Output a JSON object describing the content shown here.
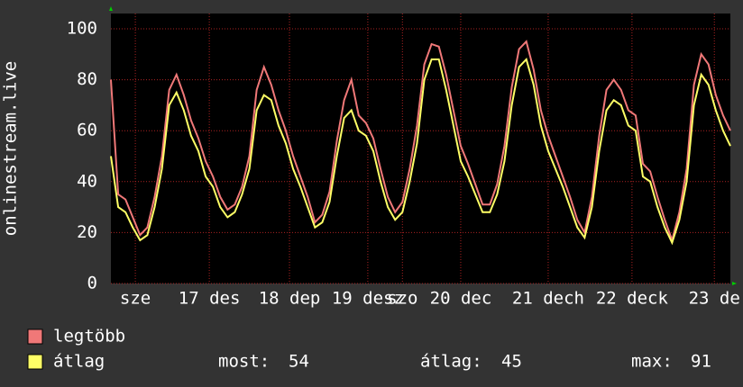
{
  "chart_data": {
    "type": "line",
    "y_label": "onlinestream.live",
    "x": [
      0,
      2,
      4,
      6,
      8,
      10,
      12,
      14,
      16,
      18,
      20,
      22,
      24,
      26,
      28,
      30,
      32,
      34,
      36,
      38,
      40,
      42,
      44,
      46,
      48,
      50,
      52,
      54,
      56,
      58,
      60,
      62,
      64,
      66,
      68,
      70,
      72,
      74,
      76,
      78,
      80,
      82,
      84,
      86,
      88,
      90,
      92,
      94,
      96,
      98,
      100,
      102,
      104,
      106,
      108,
      110,
      112,
      114,
      116,
      118,
      120,
      122,
      124,
      126,
      128,
      130,
      132,
      134,
      136,
      138,
      140,
      142,
      144,
      146,
      148,
      150,
      152,
      154,
      156,
      158,
      160,
      162,
      164,
      166,
      168,
      170
    ],
    "series": [
      {
        "name": "legtöbb",
        "color": "#f07878",
        "values": [
          80,
          35,
          33,
          26,
          19,
          22,
          34,
          50,
          76,
          82,
          74,
          64,
          57,
          48,
          42,
          34,
          29,
          31,
          38,
          50,
          76,
          85,
          78,
          68,
          60,
          50,
          42,
          34,
          24,
          27,
          36,
          56,
          72,
          80,
          66,
          63,
          57,
          45,
          34,
          28,
          32,
          45,
          62,
          86,
          94,
          93,
          82,
          68,
          54,
          47,
          39,
          31,
          31,
          39,
          54,
          77,
          92,
          95,
          84,
          68,
          58,
          50,
          42,
          34,
          25,
          20,
          34,
          58,
          76,
          80,
          76,
          68,
          66,
          47,
          44,
          34,
          25,
          17,
          28,
          45,
          78,
          90,
          86,
          74,
          66,
          60
        ]
      },
      {
        "name": "átlag",
        "color": "#ffff66",
        "values": [
          50,
          30,
          28,
          22,
          17,
          19,
          30,
          45,
          70,
          75,
          68,
          58,
          52,
          42,
          38,
          30,
          26,
          28,
          35,
          45,
          68,
          74,
          72,
          62,
          55,
          45,
          38,
          30,
          22,
          24,
          32,
          50,
          65,
          68,
          60,
          58,
          52,
          40,
          30,
          25,
          28,
          40,
          55,
          80,
          88,
          88,
          76,
          62,
          48,
          42,
          35,
          28,
          28,
          35,
          48,
          70,
          85,
          88,
          78,
          62,
          52,
          45,
          38,
          30,
          22,
          18,
          30,
          52,
          68,
          72,
          70,
          62,
          60,
          42,
          40,
          30,
          22,
          16,
          25,
          40,
          70,
          82,
          78,
          68,
          60,
          54
        ]
      }
    ],
    "xlim": [
      0,
      170
    ],
    "xticks": [
      {
        "value": 6.7,
        "label": "sze"
      },
      {
        "value": 27,
        "label": "17 des"
      },
      {
        "value": 49,
        "label": "18 dep"
      },
      {
        "value": 70.5,
        "label": "19 desz"
      },
      {
        "value": 80,
        "label": "szo"
      },
      {
        "value": 96,
        "label": "20 dec"
      },
      {
        "value": 120,
        "label": "21 dech"
      },
      {
        "value": 143,
        "label": "22 deck"
      },
      {
        "value": 165.6,
        "label": "23 de"
      }
    ],
    "ylim": [
      0,
      106
    ],
    "yticks": [
      0,
      20,
      40,
      60,
      80,
      100
    ],
    "grid": true,
    "stats": [
      {
        "label": "most:",
        "value": 54
      },
      {
        "label": "átlag:",
        "value": 45
      },
      {
        "label": "max:",
        "value": 91
      }
    ]
  }
}
